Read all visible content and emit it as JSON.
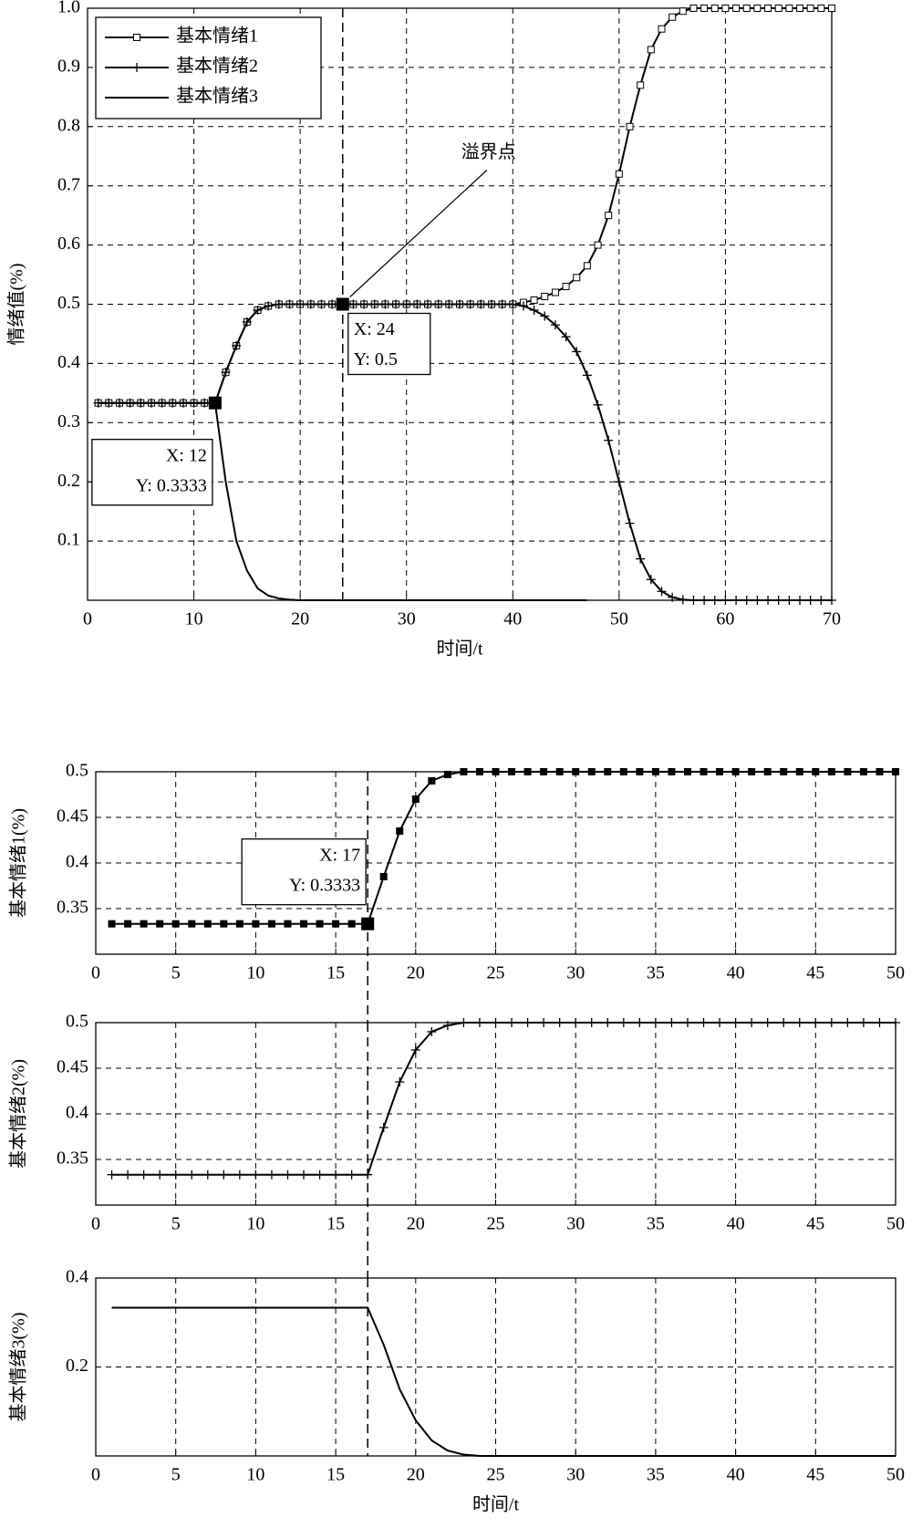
{
  "chart_data": [
    {
      "type": "line",
      "xlabel": "时间/t",
      "ylabel": "情绪值(%)",
      "x": [
        1,
        2,
        3,
        4,
        5,
        6,
        7,
        8,
        9,
        10,
        11,
        12,
        13,
        14,
        15,
        16,
        17,
        18,
        19,
        20,
        21,
        22,
        23,
        24,
        25,
        26,
        27,
        28,
        29,
        30,
        31,
        32,
        33,
        34,
        35,
        36,
        37,
        38,
        39,
        40,
        41,
        42,
        43,
        44,
        45,
        46,
        47,
        48,
        49,
        50,
        51,
        52,
        53,
        54,
        55,
        56,
        57,
        58,
        59,
        60,
        61,
        62,
        63,
        64,
        65,
        66,
        67,
        68,
        69,
        70
      ],
      "series": [
        {
          "name": "基本情绪1",
          "color": "#000000",
          "marker": "square",
          "values": [
            0.3333,
            0.3333,
            0.3333,
            0.3333,
            0.3333,
            0.3333,
            0.3333,
            0.3333,
            0.3333,
            0.3333,
            0.3333,
            0.3333,
            0.385,
            0.43,
            0.47,
            0.49,
            0.497,
            0.5,
            0.5,
            0.5,
            0.5,
            0.5,
            0.5,
            0.5,
            0.5,
            0.5,
            0.5,
            0.5,
            0.5,
            0.5,
            0.5,
            0.5,
            0.5,
            0.5,
            0.5,
            0.5,
            0.5,
            0.5,
            0.5,
            0.5,
            0.503,
            0.507,
            0.513,
            0.52,
            0.53,
            0.545,
            0.565,
            0.6,
            0.65,
            0.72,
            0.8,
            0.87,
            0.93,
            0.965,
            0.985,
            0.995,
            1,
            1,
            1,
            1,
            1,
            1,
            1,
            1,
            1,
            1,
            1,
            1,
            1,
            1
          ]
        },
        {
          "name": "基本情绪2",
          "color": "#000000",
          "marker": "plus",
          "values": [
            0.3333,
            0.3333,
            0.3333,
            0.3333,
            0.3333,
            0.3333,
            0.3333,
            0.3333,
            0.3333,
            0.3333,
            0.3333,
            0.3333,
            0.385,
            0.43,
            0.47,
            0.49,
            0.497,
            0.5,
            0.5,
            0.5,
            0.5,
            0.5,
            0.5,
            0.5,
            0.5,
            0.5,
            0.5,
            0.5,
            0.5,
            0.5,
            0.5,
            0.5,
            0.5,
            0.5,
            0.5,
            0.5,
            0.5,
            0.5,
            0.5,
            0.5,
            0.497,
            0.49,
            0.48,
            0.465,
            0.445,
            0.42,
            0.38,
            0.33,
            0.27,
            0.2,
            0.13,
            0.07,
            0.035,
            0.015,
            0.005,
            0.001,
            0,
            0,
            0,
            0,
            0,
            0,
            0,
            0,
            0,
            0,
            0,
            0,
            0,
            0
          ]
        },
        {
          "name": "基本情绪3",
          "color": "#000000",
          "marker": "none",
          "values": [
            0.3333,
            0.3333,
            0.3333,
            0.3333,
            0.3333,
            0.3333,
            0.3333,
            0.3333,
            0.3333,
            0.3333,
            0.3333,
            0.3333,
            0.2,
            0.1,
            0.05,
            0.02,
            0.008,
            0.003,
            0.001,
            0,
            0,
            0,
            0,
            0,
            0,
            0,
            0,
            0,
            0,
            0,
            0,
            0,
            0,
            0,
            0,
            0,
            0,
            0,
            0,
            0,
            0,
            0,
            0,
            0,
            0,
            0,
            0,
            null,
            null,
            null,
            null,
            null,
            null,
            null,
            null,
            null,
            null,
            null,
            null,
            null,
            null,
            null,
            null,
            null,
            null,
            null,
            null,
            null,
            null,
            null
          ]
        }
      ],
      "xlim": [
        0,
        70
      ],
      "xticks": [
        0,
        10,
        20,
        30,
        40,
        50,
        60,
        70
      ],
      "ylim": [
        0,
        1
      ],
      "yticks": [
        0.1,
        0.2,
        0.3,
        0.4,
        0.5,
        0.6,
        0.7,
        0.8,
        0.9,
        {
          "value": 1,
          "label": "1.0"
        }
      ],
      "grid": true,
      "legend": "upper left",
      "vline": 24,
      "annotations": [
        {
          "x": 12,
          "y": 0.3333,
          "text": [
            "X: 12",
            "Y: 0.3333"
          ]
        },
        {
          "x": 24,
          "y": 0.5,
          "text": [
            "X: 24",
            "Y: 0.5"
          ]
        },
        {
          "x": 24,
          "y": 0.5,
          "text": "溢界点"
        }
      ]
    },
    {
      "type": "line",
      "ylabel": "基本情绪1(%)",
      "x": [
        1,
        2,
        3,
        4,
        5,
        6,
        7,
        8,
        9,
        10,
        11,
        12,
        13,
        14,
        15,
        16,
        17,
        18,
        19,
        20,
        21,
        22,
        23,
        24,
        25,
        26,
        27,
        28,
        29,
        30,
        31,
        32,
        33,
        34,
        35,
        36,
        37,
        38,
        39,
        40,
        41,
        42,
        43,
        44,
        45,
        46,
        47,
        48,
        49,
        50
      ],
      "values": [
        0.3333,
        0.3333,
        0.3333,
        0.3333,
        0.3333,
        0.3333,
        0.3333,
        0.3333,
        0.3333,
        0.3333,
        0.3333,
        0.3333,
        0.3333,
        0.3333,
        0.3333,
        0.3333,
        0.3333,
        0.385,
        0.435,
        0.47,
        0.49,
        0.497,
        0.5,
        0.5,
        0.5,
        0.5,
        0.5,
        0.5,
        0.5,
        0.5,
        0.5,
        0.5,
        0.5,
        0.5,
        0.5,
        0.5,
        0.5,
        0.5,
        0.5,
        0.5,
        0.5,
        0.5,
        0.5,
        0.5,
        0.5,
        0.5,
        0.5,
        0.5,
        0.5,
        0.5
      ],
      "color": "#000000",
      "marker": "square-filled",
      "xlim": [
        0,
        50
      ],
      "xticks": [
        0,
        5,
        10,
        15,
        20,
        25,
        30,
        35,
        40,
        45,
        50
      ],
      "ylim": [
        0.3,
        0.5
      ],
      "yticks": [
        0.35,
        0.4,
        0.45,
        0.5
      ],
      "grid": true,
      "vline": 17,
      "annotations": [
        {
          "x": 17,
          "y": 0.3333,
          "text": [
            "X: 17",
            "Y: 0.3333"
          ]
        }
      ]
    },
    {
      "type": "line",
      "ylabel": "基本情绪2(%)",
      "x": [
        1,
        2,
        3,
        4,
        5,
        6,
        7,
        8,
        9,
        10,
        11,
        12,
        13,
        14,
        15,
        16,
        17,
        18,
        19,
        20,
        21,
        22,
        23,
        24,
        25,
        26,
        27,
        28,
        29,
        30,
        31,
        32,
        33,
        34,
        35,
        36,
        37,
        38,
        39,
        40,
        41,
        42,
        43,
        44,
        45,
        46,
        47,
        48,
        49,
        50
      ],
      "values": [
        0.3333,
        0.3333,
        0.3333,
        0.3333,
        0.3333,
        0.3333,
        0.3333,
        0.3333,
        0.3333,
        0.3333,
        0.3333,
        0.3333,
        0.3333,
        0.3333,
        0.3333,
        0.3333,
        0.3333,
        0.385,
        0.435,
        0.47,
        0.49,
        0.497,
        0.5,
        0.5,
        0.5,
        0.5,
        0.5,
        0.5,
        0.5,
        0.5,
        0.5,
        0.5,
        0.5,
        0.5,
        0.5,
        0.5,
        0.5,
        0.5,
        0.5,
        0.5,
        0.5,
        0.5,
        0.5,
        0.5,
        0.5,
        0.5,
        0.5,
        0.5,
        0.5,
        0.5
      ],
      "color": "#000000",
      "marker": "plus",
      "xlim": [
        0,
        50
      ],
      "xticks": [
        0,
        5,
        10,
        15,
        20,
        25,
        30,
        35,
        40,
        45,
        50
      ],
      "ylim": [
        0.3,
        0.5
      ],
      "yticks": [
        0.35,
        0.4,
        0.45,
        0.5
      ],
      "grid": true,
      "vline": 17
    },
    {
      "type": "line",
      "ylabel": "基本情绪3(%)",
      "xlabel": "时间/t",
      "x": [
        1,
        2,
        3,
        4,
        5,
        6,
        7,
        8,
        9,
        10,
        11,
        12,
        13,
        14,
        15,
        16,
        17,
        18,
        19,
        20,
        21,
        22,
        23,
        24,
        25,
        26,
        27,
        28,
        29,
        30,
        31,
        32,
        33,
        34,
        35,
        36,
        37,
        38,
        39,
        40,
        41,
        42,
        43,
        44,
        45,
        46,
        47,
        48,
        49,
        50
      ],
      "values": [
        0.3333,
        0.3333,
        0.3333,
        0.3333,
        0.3333,
        0.3333,
        0.3333,
        0.3333,
        0.3333,
        0.3333,
        0.3333,
        0.3333,
        0.3333,
        0.3333,
        0.3333,
        0.3333,
        0.3333,
        0.25,
        0.15,
        0.08,
        0.035,
        0.012,
        0.003,
        0,
        0,
        0,
        0,
        0,
        0,
        0,
        0,
        0,
        0,
        0,
        0,
        0,
        0,
        0,
        0,
        0,
        0,
        0,
        0,
        0,
        0,
        0,
        0,
        0,
        0,
        0
      ],
      "color": "#000000",
      "marker": "none",
      "xlim": [
        0,
        50
      ],
      "xticks": [
        0,
        5,
        10,
        15,
        20,
        25,
        30,
        35,
        40,
        45,
        50
      ],
      "ylim": [
        0,
        0.4
      ],
      "yticks": [
        0.2,
        0.4
      ],
      "grid": true,
      "vline": 17
    }
  ]
}
